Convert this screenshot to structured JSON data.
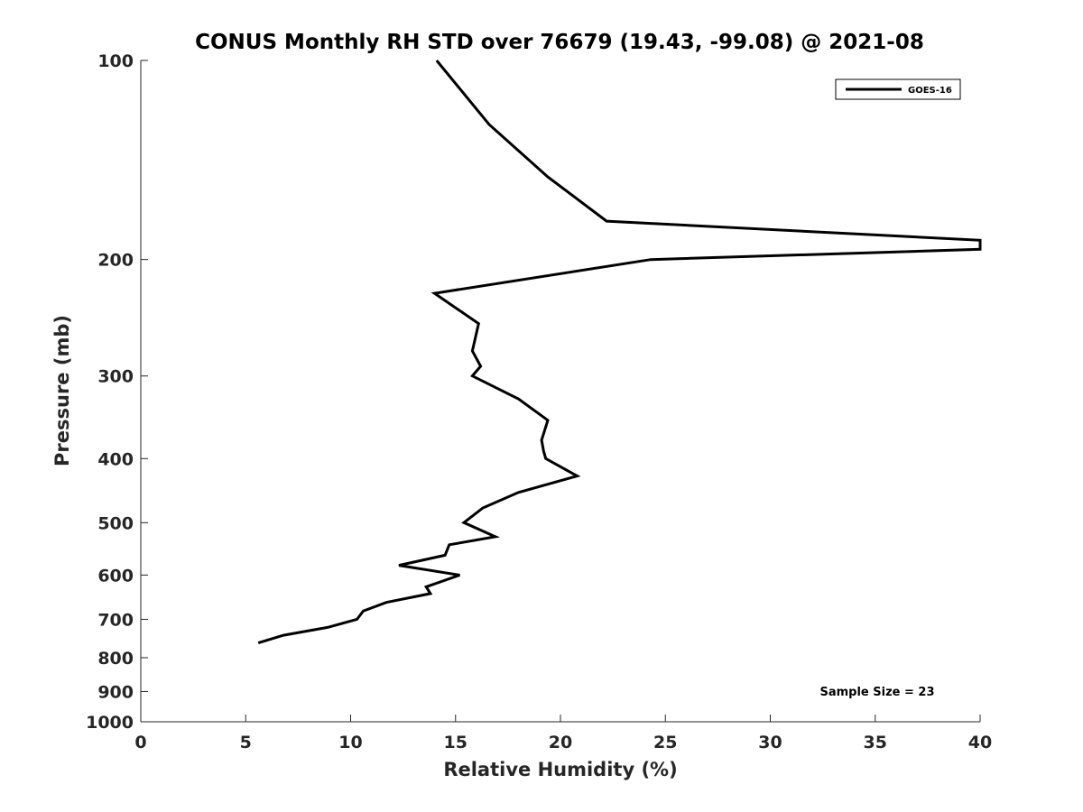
{
  "chart_data": {
    "type": "line",
    "title": "CONUS Monthly RH STD over 76679 (19.43, -99.08) @ 2021-08",
    "xlabel": "Relative Humidity (%)",
    "ylabel": "Pressure (mb)",
    "xlim": [
      0,
      40
    ],
    "ylim": [
      100,
      1000
    ],
    "y_scale": "log",
    "y_reversed": true,
    "grid": false,
    "legend_position": "top-right",
    "x_ticks": [
      0,
      5,
      10,
      15,
      20,
      25,
      30,
      35,
      40
    ],
    "y_ticks": [
      100,
      200,
      300,
      400,
      500,
      600,
      700,
      800,
      900,
      1000
    ],
    "series": [
      {
        "name": "GOES-16",
        "color": "#000000",
        "points": [
          {
            "x": 14.1,
            "y": 100
          },
          {
            "x": 16.6,
            "y": 125
          },
          {
            "x": 19.4,
            "y": 150
          },
          {
            "x": 22.2,
            "y": 175
          },
          {
            "x": 40.0,
            "y": 187
          },
          {
            "x": 40.0,
            "y": 193
          },
          {
            "x": 24.3,
            "y": 200
          },
          {
            "x": 14.0,
            "y": 225
          },
          {
            "x": 16.1,
            "y": 250
          },
          {
            "x": 15.8,
            "y": 275
          },
          {
            "x": 16.2,
            "y": 290
          },
          {
            "x": 15.8,
            "y": 300
          },
          {
            "x": 18.0,
            "y": 325
          },
          {
            "x": 19.4,
            "y": 350
          },
          {
            "x": 19.1,
            "y": 375
          },
          {
            "x": 19.2,
            "y": 390
          },
          {
            "x": 19.3,
            "y": 400
          },
          {
            "x": 20.8,
            "y": 425
          },
          {
            "x": 18.0,
            "y": 450
          },
          {
            "x": 16.3,
            "y": 475
          },
          {
            "x": 15.4,
            "y": 500
          },
          {
            "x": 16.9,
            "y": 525
          },
          {
            "x": 14.7,
            "y": 540
          },
          {
            "x": 14.5,
            "y": 560
          },
          {
            "x": 12.3,
            "y": 580
          },
          {
            "x": 15.2,
            "y": 600
          },
          {
            "x": 13.6,
            "y": 625
          },
          {
            "x": 13.8,
            "y": 640
          },
          {
            "x": 11.7,
            "y": 660
          },
          {
            "x": 10.6,
            "y": 680
          },
          {
            "x": 10.3,
            "y": 700
          },
          {
            "x": 8.9,
            "y": 720
          },
          {
            "x": 6.8,
            "y": 740
          },
          {
            "x": 5.6,
            "y": 760
          }
        ]
      }
    ],
    "annotation": "Sample Size = 23"
  }
}
